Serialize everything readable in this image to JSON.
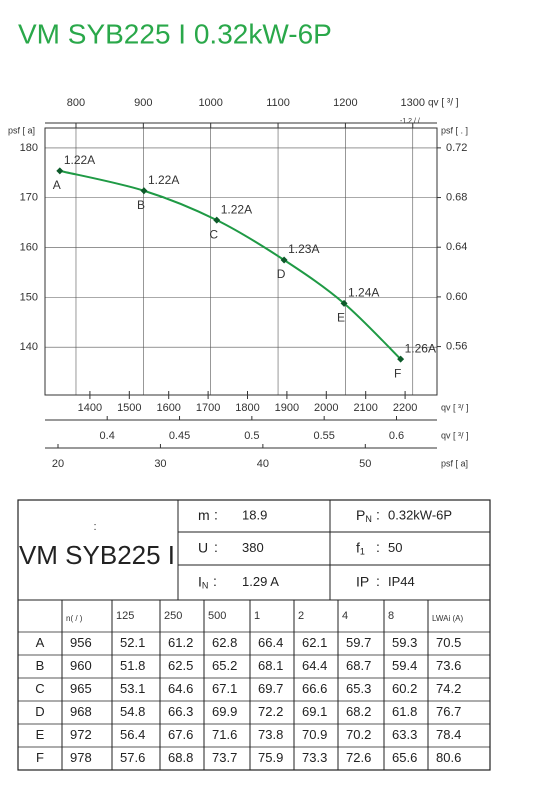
{
  "chart_data": {
    "type": "line",
    "title": "VM SYB225 I 0.32kW-6P",
    "x_label": "qv [   ³/   ]",
    "x_label_note": "-1.2  /  /",
    "y_label": "psf [  a]",
    "y2_label": "psf [              .   ]",
    "x": [
      776,
      901,
      1009,
      1109,
      1198,
      1282
    ],
    "series": [
      {
        "color": "#1f9a45",
        "values": [
          175.4,
          171.4,
          165.5,
          157.5,
          148.8,
          137.6
        ],
        "point_labels": [
          "A",
          "B",
          "C",
          "D",
          "E",
          "F"
        ],
        "current_labels": [
          "1.22A",
          "1.22A",
          "1.22A",
          "1.23A",
          "1.24A",
          "1.26A"
        ]
      }
    ],
    "xlim": [
      754,
      1336
    ],
    "xticks": [
      800,
      900,
      1000,
      1100,
      1200,
      1300
    ],
    "ylim": [
      130.4,
      184
    ],
    "yticks": [
      140,
      150,
      160,
      170,
      180
    ],
    "y2lim": [
      0.521,
      0.736
    ],
    "y2ticks": [
      0.56,
      {
        "value": 0.6,
        "label": "0.60"
      },
      0.64,
      0.68,
      0.72
    ],
    "grid": true,
    "secondary_x_axes": [
      {
        "label": "qv [  ³/  ]",
        "lim": [
          1286,
          2281
        ],
        "ticks": [
          1400,
          1500,
          1600,
          1700,
          1800,
          1900,
          2000,
          2100,
          2200
        ]
      },
      {
        "label": "qv [  ³/  ]",
        "lim": [
          0.357,
          0.628
        ],
        "ticks": [
          0.4,
          0.45,
          0.5,
          0.55,
          0.6
        ]
      },
      {
        "label": "psf [  a]",
        "lim": [
          18.73,
          57
        ],
        "ticks": [
          20,
          30,
          40,
          50
        ]
      }
    ]
  },
  "table": {
    "model_note": ":",
    "model": "VM SYB225 I",
    "specs": [
      [
        {
          "sym": "m",
          "sub": null,
          "value": "18.9"
        },
        {
          "sym": "P",
          "sub": "N",
          "value": "0.32kW-6P"
        }
      ],
      [
        {
          "sym": "U",
          "sub": null,
          "value": "380"
        },
        {
          "sym": "f",
          "sub": "1",
          "value": "50"
        }
      ],
      [
        {
          "sym": "I",
          "sub": "N",
          "value": "1.29  A"
        },
        {
          "sym": "IP",
          "sub": null,
          "value": "IP44"
        }
      ]
    ],
    "colon": ":",
    "header": [
      null,
      "n(  /  )",
      125,
      250,
      500,
      1,
      2,
      4,
      8,
      "LWAi    (A)"
    ],
    "rows": [
      [
        "A",
        956,
        52.1,
        61.2,
        62.8,
        66.4,
        62.1,
        59.7,
        59.3,
        70.5
      ],
      [
        "B",
        960,
        51.8,
        62.5,
        65.2,
        68.1,
        64.4,
        68.7,
        59.4,
        73.6
      ],
      [
        "C",
        965,
        53.1,
        64.6,
        67.1,
        69.7,
        66.6,
        65.3,
        60.2,
        74.2
      ],
      [
        "D",
        968,
        54.8,
        66.3,
        69.9,
        72.2,
        69.1,
        68.2,
        61.8,
        76.7
      ],
      [
        "E",
        972,
        56.4,
        67.6,
        71.6,
        73.8,
        70.9,
        70.2,
        63.3,
        78.4
      ],
      [
        "F",
        978,
        57.6,
        68.8,
        73.7,
        75.9,
        73.3,
        72.6,
        65.6,
        80.6
      ]
    ]
  }
}
